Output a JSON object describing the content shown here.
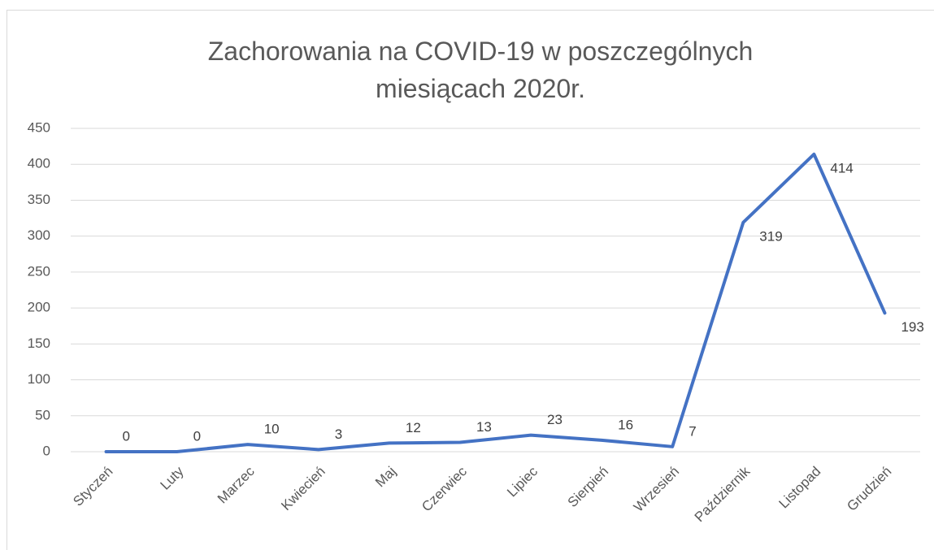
{
  "chart_data": {
    "type": "line",
    "title": "Zachorowania na COVID-19 w poszczególnych miesiącach 2020r.",
    "categories": [
      "Styczeń",
      "Luty",
      "Marzec",
      "Kwiecień",
      "Maj",
      "Czerwiec",
      "Lipiec",
      "Sierpień",
      "Wrzesień",
      "Październik",
      "Listopad",
      "Grudzień"
    ],
    "series": [
      {
        "name": "Zachorowania",
        "color": "#4472c4",
        "values": [
          0,
          0,
          10,
          3,
          12,
          13,
          23,
          16,
          7,
          319,
          414,
          193
        ]
      }
    ],
    "ylim": [
      0,
      450
    ],
    "yticks": [
      0,
      50,
      100,
      150,
      200,
      250,
      300,
      350,
      400,
      450
    ],
    "grid": true,
    "legend": false
  }
}
